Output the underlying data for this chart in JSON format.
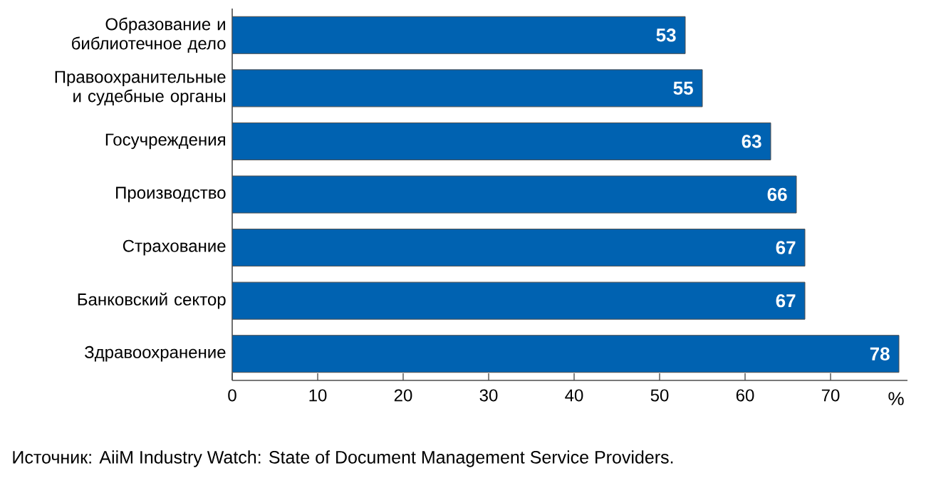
{
  "chart_data": {
    "type": "bar",
    "orientation": "horizontal",
    "categories": [
      "Образование и библиотечное дело",
      "Правоохранительные и судебные органы",
      "Госучреждения",
      "Производство",
      "Страхование",
      "Банковский сектор",
      "Здравоохранение"
    ],
    "values": [
      53,
      55,
      63,
      66,
      67,
      67,
      78
    ],
    "color": "#0062b1",
    "data_labels": true,
    "xlabel": "%",
    "xlim": [
      0,
      79
    ],
    "xticks": [
      0,
      10,
      20,
      30,
      40,
      50,
      60,
      70
    ],
    "grid": false,
    "annotations": [
      "Источник: AiiM Industry Watch: State of Document Management Service Providers."
    ]
  }
}
